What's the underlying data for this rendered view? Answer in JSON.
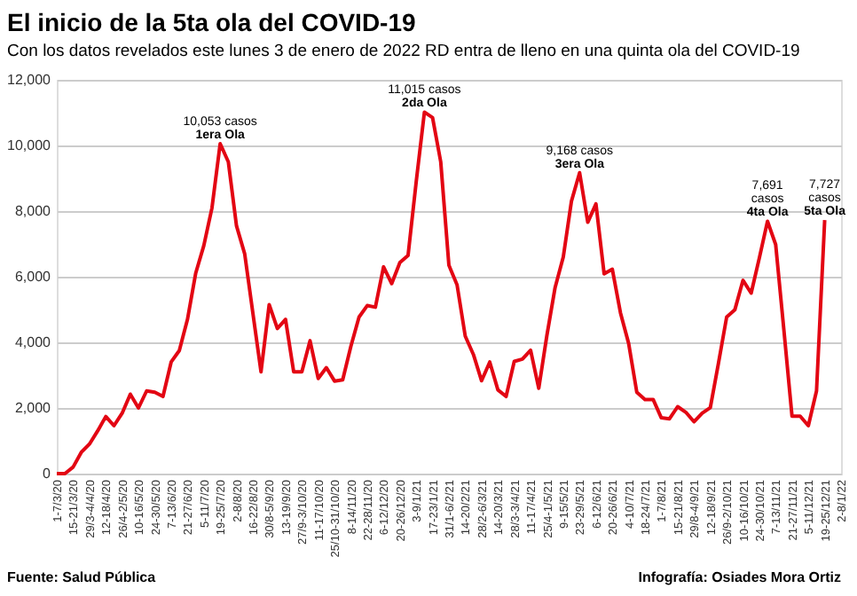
{
  "chart_data": {
    "type": "line",
    "title": "El inicio de la 5ta ola del COVID-19",
    "subtitle": "Con los datos revelados este lunes 3 de enero de 2022 RD entra de lleno en una quinta ola del COVID-19",
    "categories": [
      "1-7/3/20",
      null,
      "15-21/3/20",
      null,
      "29/3-4/4/20",
      null,
      "12-18/4/20",
      null,
      "26/4-2/5/20",
      null,
      "10-16/5/20",
      null,
      "24-30/5/20",
      null,
      "7-13/6/20",
      null,
      "21-27/6/20",
      null,
      "5-11/7/20",
      null,
      "19-25/7/20",
      null,
      "2-8/8/20",
      null,
      "16-22/8/20",
      null,
      "30/8-5/9/20",
      null,
      "13-19/9/20",
      null,
      "27/9-3/10/20",
      null,
      "11-17/10/20",
      null,
      "25/10-31/10/20",
      null,
      "8-14/11/20",
      null,
      "22-28/11/20",
      null,
      "6-12/12/20",
      null,
      "20-26/12/20",
      null,
      "3-9/1/21",
      null,
      "17-23/1/21",
      null,
      "31/1-6/2/21",
      null,
      "14-20/2/21",
      null,
      "28/2-6/3/21",
      null,
      "14-20/3/21",
      null,
      "28/3-3/4/21",
      null,
      "11-17/4/21",
      null,
      "25/4-1/5/21",
      null,
      "9-15/5/21",
      null,
      "23-29/5/21",
      null,
      "6-12/6/21",
      null,
      "20-26/6/21",
      null,
      "4-10/7/21",
      null,
      "18-24/7/21",
      null,
      "1-7/8/21",
      null,
      "15-21/8/21",
      null,
      "29/8-4/9/21",
      null,
      "12-18/9/21",
      null,
      "26/9-2/10/21",
      null,
      "10-16/10/21",
      null,
      "24-30/10/21",
      null,
      "7-13/11/21",
      null,
      "21-27/11/21",
      null,
      "5-11/12/21",
      null,
      "19-25/12/21",
      null,
      "2-8/1/22"
    ],
    "series": [
      {
        "color": "#e30613",
        "values": [
          0,
          0,
          200,
          650,
          900,
          1300,
          1740,
          1460,
          1840,
          2420,
          2000,
          2520,
          2480,
          2350,
          3400,
          3750,
          4700,
          6100,
          6950,
          8100,
          10053,
          9500,
          7550,
          6700,
          4900,
          3100,
          5150,
          4420,
          4700,
          3100,
          3100,
          4050,
          2900,
          3230,
          2820,
          2860,
          3880,
          4770,
          5120,
          5070,
          6300,
          5790,
          6430,
          6650,
          8900,
          11015,
          10850,
          9500,
          6350,
          5750,
          4190,
          3630,
          2830,
          3400,
          2550,
          2350,
          3420,
          3490,
          3760,
          2600,
          4220,
          5670,
          6600,
          8300,
          9168,
          7660,
          8220,
          6090,
          6230,
          4900,
          3970,
          2480,
          2260,
          2260,
          1700,
          1670,
          2040,
          1870,
          1580,
          1840,
          2010,
          3370,
          4770,
          4990,
          5890,
          5500,
          6570,
          7691,
          6980,
          4390,
          1750,
          1750,
          1460,
          2520,
          7727,
          null,
          null
        ]
      }
    ],
    "ylim": [
      0,
      12000
    ],
    "yticks": [
      0,
      {
        "value": 2000,
        "label": "2,000"
      },
      {
        "value": 4000,
        "label": "4,000"
      },
      {
        "value": 6000,
        "label": "6,000"
      },
      {
        "value": 8000,
        "label": "8,000"
      },
      {
        "value": 10000,
        "label": "10,000"
      },
      {
        "value": 12000,
        "label": "12,000"
      }
    ],
    "grid": "y",
    "marker": "none",
    "line_style": "solid",
    "annotations": [
      {
        "text": "10,053 casos",
        "y": 10053
      },
      {
        "text": "1era Ola",
        "y": 10053
      },
      {
        "text": "11,015 casos",
        "y": 11015
      },
      {
        "text": "2da Ola",
        "y": 11015
      },
      {
        "text": "9,168 casos",
        "y": 9168
      },
      {
        "text": "3era Ola",
        "y": 9168
      },
      {
        "text": "7,691",
        "y": 7691
      },
      {
        "text": "casos",
        "y": 7691
      },
      {
        "text": "4ta Ola",
        "y": 7691
      },
      {
        "text": "7,727",
        "y": 7727
      },
      {
        "text": "casos",
        "y": 7727
      },
      {
        "text": "5ta Ola",
        "y": 7727
      },
      "Fuente: Salud Pública",
      "Infografía: Osiades Mora Ortiz"
    ]
  }
}
